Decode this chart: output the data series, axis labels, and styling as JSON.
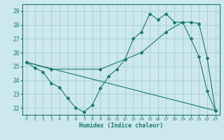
{
  "xlabel": "Humidex (Indice chaleur)",
  "background_color": "#cce8ec",
  "grid_color": "#aacfd5",
  "line_color": "#1a7a6a",
  "xlim": [
    -0.5,
    23.5
  ],
  "ylim": [
    21.5,
    29.5
  ],
  "yticks": [
    22,
    23,
    24,
    25,
    26,
    27,
    28,
    29
  ],
  "xticks": [
    0,
    1,
    2,
    3,
    4,
    5,
    6,
    7,
    8,
    9,
    10,
    11,
    12,
    13,
    14,
    15,
    16,
    17,
    18,
    19,
    20,
    21,
    22,
    23
  ],
  "line1_x": [
    0,
    1,
    2,
    3,
    4,
    5,
    6,
    7,
    8,
    9,
    10,
    11,
    12,
    13,
    14,
    15,
    16,
    17,
    18,
    19,
    20,
    21,
    22,
    23
  ],
  "line1_y": [
    25.3,
    24.9,
    24.6,
    23.8,
    23.5,
    22.7,
    22.0,
    21.7,
    22.2,
    23.4,
    24.3,
    24.8,
    25.5,
    27.0,
    27.5,
    28.8,
    28.4,
    28.8,
    28.2,
    28.2,
    27.0,
    25.7,
    23.2,
    21.8
  ],
  "line2_x": [
    0,
    3,
    9,
    14,
    17,
    19,
    20,
    21,
    22,
    23
  ],
  "line2_y": [
    25.3,
    24.8,
    24.8,
    26.0,
    27.5,
    28.2,
    28.2,
    28.1,
    25.6,
    21.8
  ],
  "line3_x": [
    0,
    23
  ],
  "line3_y": [
    25.3,
    21.8
  ]
}
